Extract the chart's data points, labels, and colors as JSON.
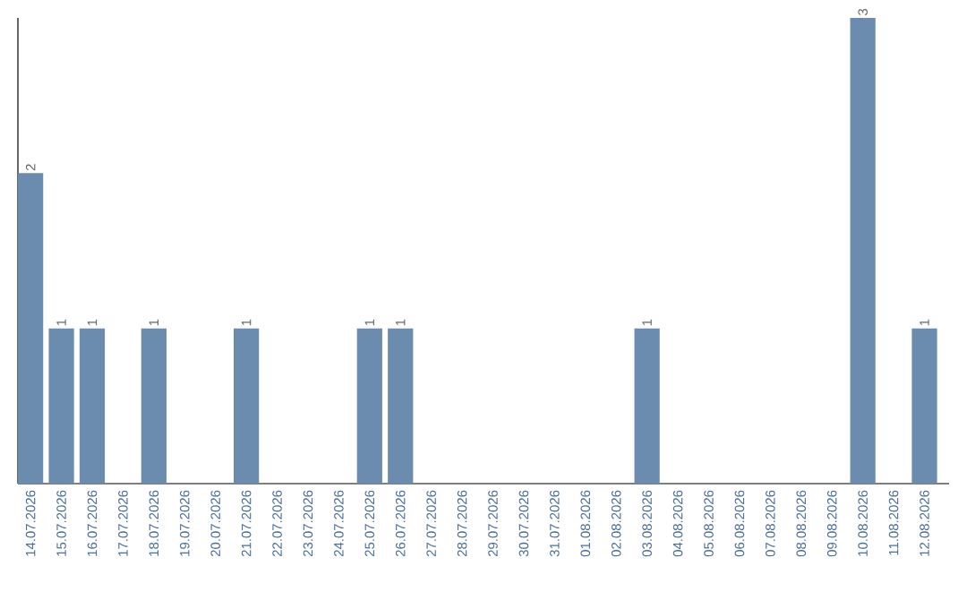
{
  "chart_data": {
    "type": "bar",
    "categories": [
      "14.07.2026",
      "15.07.2026",
      "16.07.2026",
      "17.07.2026",
      "18.07.2026",
      "19.07.2026",
      "20.07.2026",
      "21.07.2026",
      "22.07.2026",
      "23.07.2026",
      "24.07.2026",
      "25.07.2026",
      "26.07.2026",
      "27.07.2026",
      "28.07.2026",
      "29.07.2026",
      "30.07.2026",
      "31.07.2026",
      "01.08.2026",
      "02.08.2026",
      "03.08.2026",
      "04.08.2026",
      "05.08.2026",
      "06.08.2026",
      "07.08.2026",
      "08.08.2026",
      "09.08.2026",
      "10.08.2026",
      "11.08.2026",
      "12.08.2026"
    ],
    "values": [
      2,
      1,
      1,
      0,
      1,
      0,
      0,
      1,
      0,
      0,
      0,
      1,
      1,
      0,
      0,
      0,
      0,
      0,
      0,
      0,
      1,
      0,
      0,
      0,
      0,
      0,
      0,
      3,
      0,
      1
    ],
    "value_labels": [
      "2",
      "1",
      "1",
      null,
      "1",
      null,
      null,
      "1",
      null,
      null,
      null,
      "1",
      "1",
      null,
      null,
      null,
      null,
      null,
      null,
      null,
      "1",
      null,
      null,
      null,
      null,
      null,
      null,
      "3",
      null,
      "1"
    ],
    "color": "#6b8cae"
  }
}
